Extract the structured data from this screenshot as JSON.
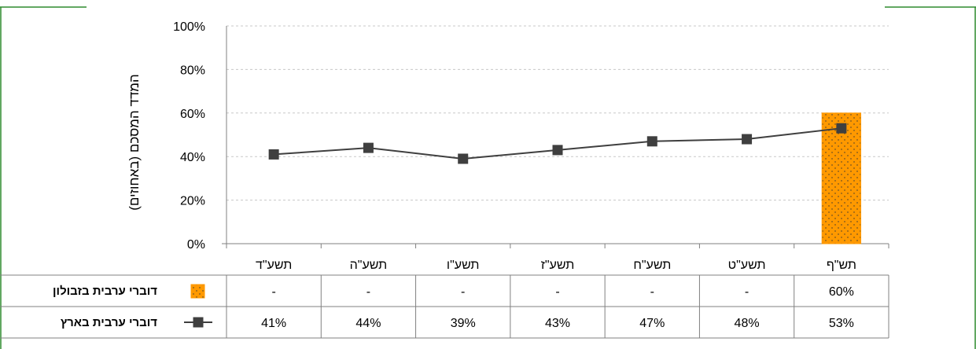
{
  "chart_data": {
    "type": "bar+line",
    "ylabel": "המדד המסכם (באחוזים)",
    "ylim": [
      0,
      100
    ],
    "yticks": [
      "0%",
      "20%",
      "40%",
      "60%",
      "80%",
      "100%"
    ],
    "grid": true,
    "categories": [
      "תשע\"ד",
      "תשע\"ה",
      "תשע\"ו",
      "תשע\"ז",
      "תשע\"ח",
      "תשע\"ט",
      "תש\"ף"
    ],
    "series": [
      {
        "name": "דוברי ערבית בזבולון",
        "kind": "bar",
        "color": "#FF9900",
        "values": [
          null,
          null,
          null,
          null,
          null,
          null,
          60
        ],
        "labels": [
          "-",
          "-",
          "-",
          "-",
          "-",
          "-",
          "60%"
        ]
      },
      {
        "name": "דוברי ערבית בארץ",
        "kind": "line",
        "color": "#3F3F3F",
        "values": [
          41,
          44,
          39,
          43,
          47,
          48,
          53
        ],
        "labels": [
          "41%",
          "44%",
          "39%",
          "43%",
          "47%",
          "48%",
          "53%"
        ]
      }
    ]
  }
}
